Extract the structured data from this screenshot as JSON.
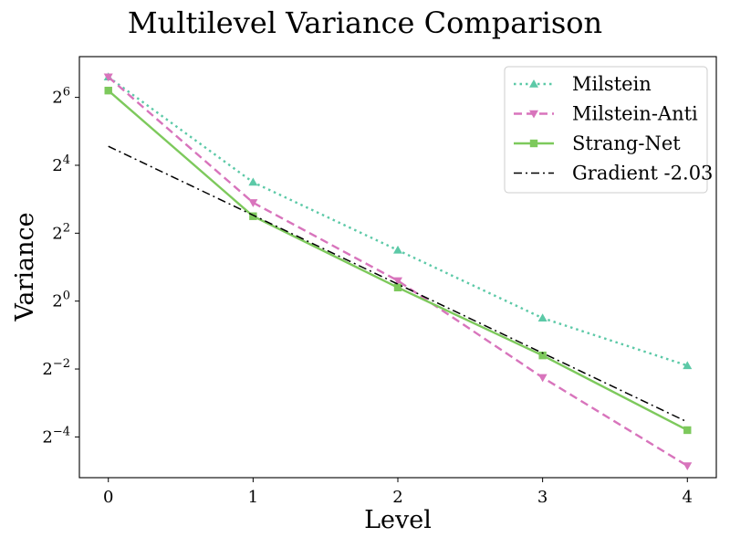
{
  "chart_data": {
    "type": "line",
    "title": "Multilevel Variance Comparison",
    "xlabel": "Level",
    "ylabel": "Variance",
    "y_scale": "log2",
    "x": [
      0,
      1,
      2,
      3,
      4
    ],
    "xlim": [
      -0.2,
      4.2
    ],
    "ylim_log2": [
      -5.2,
      7.2
    ],
    "x_ticks": [
      0,
      1,
      2,
      3,
      4
    ],
    "y_ticks_log2": [
      6,
      4,
      2,
      0,
      -2,
      -4
    ],
    "grid": false,
    "legend_position": "top-right",
    "series": [
      {
        "name": "Milstein",
        "color": "#5cc9a7",
        "line_style": "dotted",
        "marker": "triangle-up",
        "values_log2": [
          6.6,
          3.5,
          1.5,
          -0.5,
          -1.9
        ]
      },
      {
        "name": "Milstein-Anti",
        "color": "#d874bc",
        "line_style": "dashed",
        "marker": "triangle-down",
        "values_log2": [
          6.6,
          2.9,
          0.6,
          -2.25,
          -4.85
        ]
      },
      {
        "name": "Strang-Net",
        "color": "#7dc95c",
        "line_style": "solid",
        "marker": "square",
        "values_log2": [
          6.2,
          2.5,
          0.4,
          -1.6,
          -3.8
        ]
      },
      {
        "name": "Gradient -2.03",
        "color": "#000000",
        "line_style": "dashdot",
        "marker": "none",
        "values_log2": [
          4.56,
          2.53,
          0.5,
          -1.53,
          -3.56
        ]
      }
    ]
  }
}
